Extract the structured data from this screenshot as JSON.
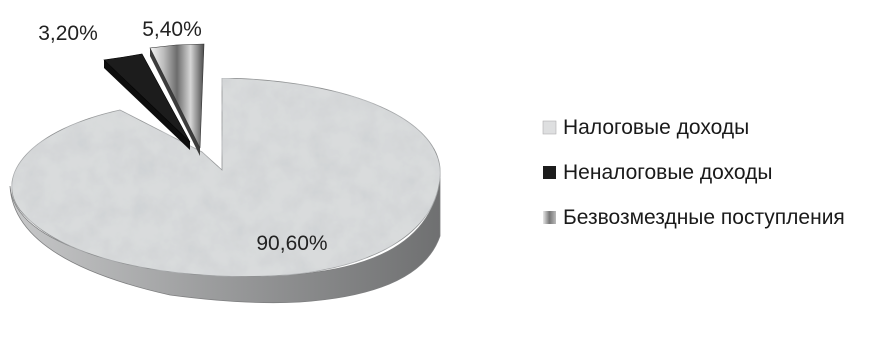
{
  "chart_data": {
    "type": "pie",
    "style": "3d-exploded",
    "slices": [
      {
        "name": "Налоговые доходы",
        "value": 90.6,
        "label": "90,60%",
        "color": "#d9dbdc"
      },
      {
        "name": "Неналоговые доходы",
        "value": 3.2,
        "label": "3,20%",
        "color": "#1c1c1c"
      },
      {
        "name": "Безвозмездные поступления",
        "value": 5.4,
        "label": "5,40%",
        "color": "#9a9a9a"
      }
    ],
    "legend_position": "right"
  }
}
